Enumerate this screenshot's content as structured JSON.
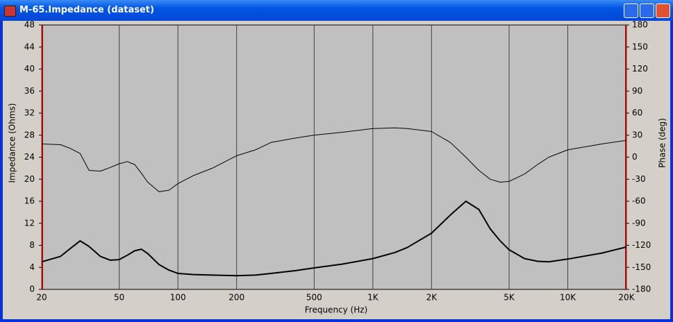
{
  "window_title": "M-65.Impedance (dataset)",
  "chart_data": {
    "type": "line",
    "xlabel": "Frequency (Hz)",
    "ylabel": "Impedance (Ohms)",
    "y2label": "Phase (deg)",
    "xscale": "log",
    "grid": "x",
    "xlim": [
      20,
      20000
    ],
    "xticks": [
      20,
      50,
      100,
      200,
      500,
      {
        "value": 1000,
        "label": "1K"
      },
      {
        "value": 2000,
        "label": "2K"
      },
      {
        "value": 5000,
        "label": "5K"
      },
      {
        "value": 10000,
        "label": "10K"
      },
      {
        "value": 20000,
        "label": "20K"
      }
    ],
    "ylim": [
      0,
      48
    ],
    "yticks": [
      0,
      4,
      8,
      12,
      16,
      20,
      24,
      28,
      32,
      36,
      40,
      44,
      48
    ],
    "y2lim": [
      -180,
      180
    ],
    "y2ticks": [
      -180,
      -150,
      -120,
      -90,
      -60,
      -30,
      0,
      30,
      60,
      90,
      120,
      150,
      180
    ],
    "x": [
      20,
      25,
      28,
      31.5,
      35,
      40,
      45,
      50,
      55,
      60,
      65,
      70,
      80,
      90,
      100,
      120,
      150,
      200,
      250,
      300,
      400,
      500,
      700,
      1000,
      1300,
      1500,
      2000,
      2500,
      3000,
      3500,
      4000,
      4500,
      5000,
      6000,
      7000,
      8000,
      10000,
      15000,
      20000
    ],
    "series": [
      {
        "name": "Impedance",
        "color": "#000000",
        "width": 2,
        "values": [
          5.0,
          6.0,
          7.4,
          8.8,
          7.8,
          6.0,
          5.3,
          5.4,
          6.2,
          7.0,
          7.3,
          6.5,
          4.5,
          3.5,
          2.9,
          2.7,
          2.6,
          2.5,
          2.6,
          2.9,
          3.4,
          3.9,
          4.6,
          5.6,
          6.7,
          7.6,
          10.2,
          13.5,
          16.0,
          14.5,
          11.0,
          8.8,
          7.2,
          5.6,
          5.1,
          5.0,
          5.5,
          6.6,
          7.7
        ]
      },
      {
        "name": "Phase",
        "color": "#000000",
        "width": 1,
        "axis": "y2",
        "values": [
          18,
          17,
          12,
          5,
          -18,
          -19,
          -14,
          -9,
          -6,
          -10,
          -22,
          -34,
          -47,
          -45,
          -36,
          -25,
          -15,
          2,
          10,
          20,
          26,
          30,
          34,
          39,
          40,
          39,
          35,
          20,
          0,
          -18,
          -30,
          -34,
          -33,
          -23,
          -10,
          0,
          10,
          18,
          23
        ]
      }
    ]
  }
}
